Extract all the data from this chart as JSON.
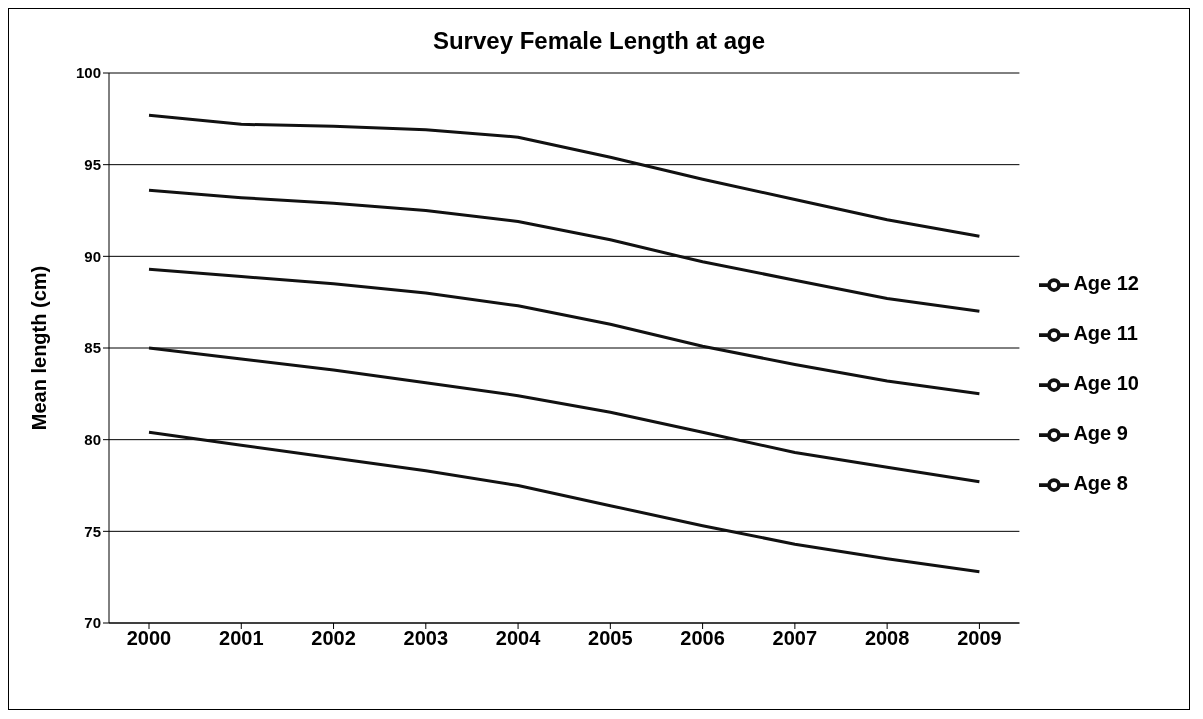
{
  "chart_data": {
    "type": "line",
    "title": "Survey Female Length at age",
    "ylabel": "Mean length (cm)",
    "categories": [
      "2000",
      "2001",
      "2002",
      "2003",
      "2004",
      "2005",
      "2006",
      "2007",
      "2008",
      "2009"
    ],
    "series": [
      {
        "name": "Age 12",
        "color": "#111111",
        "values": [
          97.7,
          97.2,
          97.1,
          96.9,
          96.5,
          95.4,
          94.2,
          93.1,
          92.0,
          91.1
        ]
      },
      {
        "name": "Age 11",
        "color": "#111111",
        "values": [
          93.6,
          93.2,
          92.9,
          92.5,
          91.9,
          90.9,
          89.7,
          88.7,
          87.7,
          87.0
        ]
      },
      {
        "name": "Age 10",
        "color": "#111111",
        "values": [
          89.3,
          88.9,
          88.5,
          88.0,
          87.3,
          86.3,
          85.1,
          84.1,
          83.2,
          82.5
        ]
      },
      {
        "name": "Age 9",
        "color": "#111111",
        "values": [
          85.0,
          84.4,
          83.8,
          83.1,
          82.4,
          81.5,
          80.4,
          79.3,
          78.5,
          77.7
        ]
      },
      {
        "name": "Age 8",
        "color": "#111111",
        "values": [
          80.4,
          79.7,
          79.0,
          78.3,
          77.5,
          76.4,
          75.3,
          74.3,
          73.5,
          72.8
        ]
      }
    ],
    "ylim": [
      70,
      100
    ],
    "yticks": [
      70,
      75,
      80,
      85,
      90,
      95,
      100
    ],
    "grid": "y",
    "legend": "right",
    "marker": "none",
    "line_style": "solid"
  }
}
